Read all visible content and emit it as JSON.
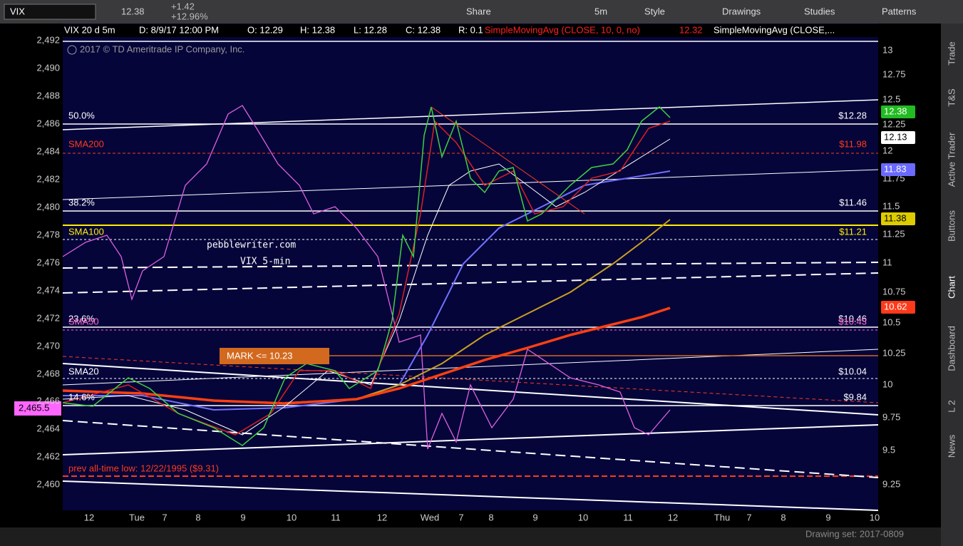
{
  "toolbar": {
    "symbol": "VIX",
    "price": "12.38",
    "change": "+1.42",
    "change_pct": "+12.96%",
    "buttons": [
      "Share",
      "5m",
      "Style",
      "Drawings",
      "Studies",
      "Patterns"
    ]
  },
  "header": {
    "series": "VIX 20 d 5m",
    "date": "D: 8/9/17 12:00 PM",
    "open": "O: 12.29",
    "high": "H: 12.38",
    "low": "L: 12.28",
    "close": "C: 12.38",
    "range": "R: 0.1",
    "study1": "SimpleMovingAvg (CLOSE, 10, 0, no)",
    "study1_value": "12.32",
    "study2": "SimpleMovingAvg (CLOSE,..."
  },
  "copyright": "2017 © TD Ameritrade IP Company, Inc.",
  "left_axis": [
    "2,492",
    "2,490",
    "2,488",
    "2,486",
    "2,484",
    "2,482",
    "2,480",
    "2,478",
    "2,476",
    "2,474",
    "2,472",
    "2,470",
    "2,468",
    "2,466",
    "2,464",
    "2,462",
    "2,460"
  ],
  "left_marker": "2,465.5",
  "right_axis": [
    "13",
    "12.75",
    "12.5",
    "12.25",
    "12",
    "11.75",
    "11.5",
    "11.25",
    "11",
    "10.75",
    "10.5",
    "10.25",
    "10",
    "9.75",
    "9.5",
    "9.25"
  ],
  "badges": [
    "12.38",
    "12.13",
    "11.83",
    "11.38",
    "10.62"
  ],
  "x_axis": [
    "12",
    "Tue",
    "7",
    "8",
    "9",
    "10",
    "11",
    "12",
    "Wed",
    "7",
    "8",
    "9",
    "10",
    "11",
    "12",
    "Thu",
    "7",
    "8",
    "9",
    "10"
  ],
  "levels_left": [
    "50.0%",
    "SMA200",
    "38.2%",
    "SMA100",
    "23.6%",
    "SMA50",
    "SMA20",
    "14.6%"
  ],
  "levels_right": [
    "$12.28",
    "$11.98",
    "$11.46",
    "$11.21",
    "$10.46",
    "$10.43",
    "$10.04",
    "$9.84"
  ],
  "annotations": {
    "site": "pebblewriter.com",
    "subtitle": "VIX 5-min",
    "mark": "MARK <= 10.23",
    "low": "prev all-time low: 12/22/1995 ($9.31)"
  },
  "side_tabs": [
    "Trade",
    "T&S",
    "Active Trader",
    "Buttons",
    "Chart",
    "Dashboard",
    "L 2",
    "News"
  ],
  "footer": "Drawing set: 2017-0809"
}
